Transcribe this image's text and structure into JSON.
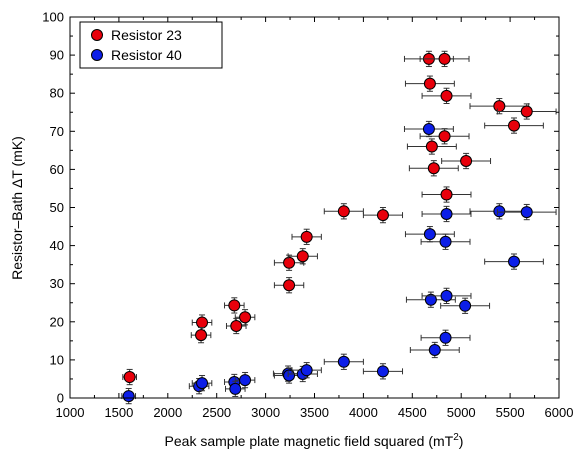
{
  "chart_data": {
    "type": "scatter",
    "xlabel": "Peak sample plate magnetic field squared (mT",
    "xlabel_sup": "2",
    "xlabel_tail": ")",
    "ylabel": "Resistor–Bath ΔT (mK)",
    "xlim": [
      1000,
      6000
    ],
    "ylim": [
      0,
      100
    ],
    "x_ticks": [
      "1000",
      "1500",
      "2000",
      "2500",
      "3000",
      "3500",
      "4000",
      "4500",
      "5000",
      "5500",
      "6000"
    ],
    "y_ticks": [
      "0",
      "10",
      "20",
      "30",
      "40",
      "50",
      "60",
      "70",
      "80",
      "90",
      "100"
    ],
    "x_tick_values": [
      1000,
      1500,
      2000,
      2500,
      3000,
      3500,
      4000,
      4500,
      5000,
      5500,
      6000
    ],
    "y_tick_values": [
      0,
      10,
      20,
      30,
      40,
      50,
      60,
      70,
      80,
      90,
      100
    ],
    "grid": false,
    "legend_position": "top-left",
    "series": [
      {
        "name": "Resistor 23",
        "color": "#e8000b",
        "x": [
          1610,
          2350,
          2340,
          2680,
          2700,
          2790,
          3240,
          3240,
          3380,
          3420,
          3800,
          4200,
          4670,
          4680,
          4700,
          4720,
          4830,
          4850,
          4830,
          4850,
          5050,
          5390,
          5540,
          5670
        ],
        "y": [
          5.5,
          19.8,
          16.5,
          24.3,
          18.9,
          21.2,
          35.5,
          29.6,
          37.2,
          42.3,
          49.0,
          48.0,
          89.0,
          82.5,
          66.0,
          60.3,
          89.0,
          79.3,
          68.7,
          53.4,
          62.2,
          76.6,
          71.5,
          75.2
        ],
        "xerr": [
          70,
          100,
          100,
          100,
          100,
          100,
          150,
          150,
          150,
          150,
          200,
          200,
          250,
          250,
          250,
          250,
          250,
          250,
          250,
          250,
          250,
          300,
          300,
          300
        ],
        "yerr": 2
      },
      {
        "name": "Resistor 40",
        "color": "#0c1ee8",
        "x": [
          1600,
          2320,
          2350,
          2680,
          2690,
          2790,
          3230,
          3240,
          3380,
          3420,
          3800,
          4200,
          4670,
          4680,
          4690,
          4730,
          4850,
          4850,
          4840,
          4840,
          5040,
          5390,
          5540,
          5670
        ],
        "y": [
          0.5,
          3.1,
          3.9,
          4.2,
          2.4,
          4.7,
          6.4,
          5.9,
          6.3,
          7.3,
          9.5,
          7.0,
          70.6,
          43.0,
          25.8,
          12.6,
          26.8,
          48.3,
          41.0,
          15.8,
          24.2,
          49.0,
          35.8,
          48.8
        ],
        "xerr": [
          70,
          100,
          100,
          100,
          100,
          100,
          150,
          150,
          150,
          150,
          200,
          200,
          250,
          250,
          250,
          250,
          250,
          250,
          250,
          250,
          250,
          300,
          300,
          300
        ],
        "yerr": 2
      }
    ]
  }
}
